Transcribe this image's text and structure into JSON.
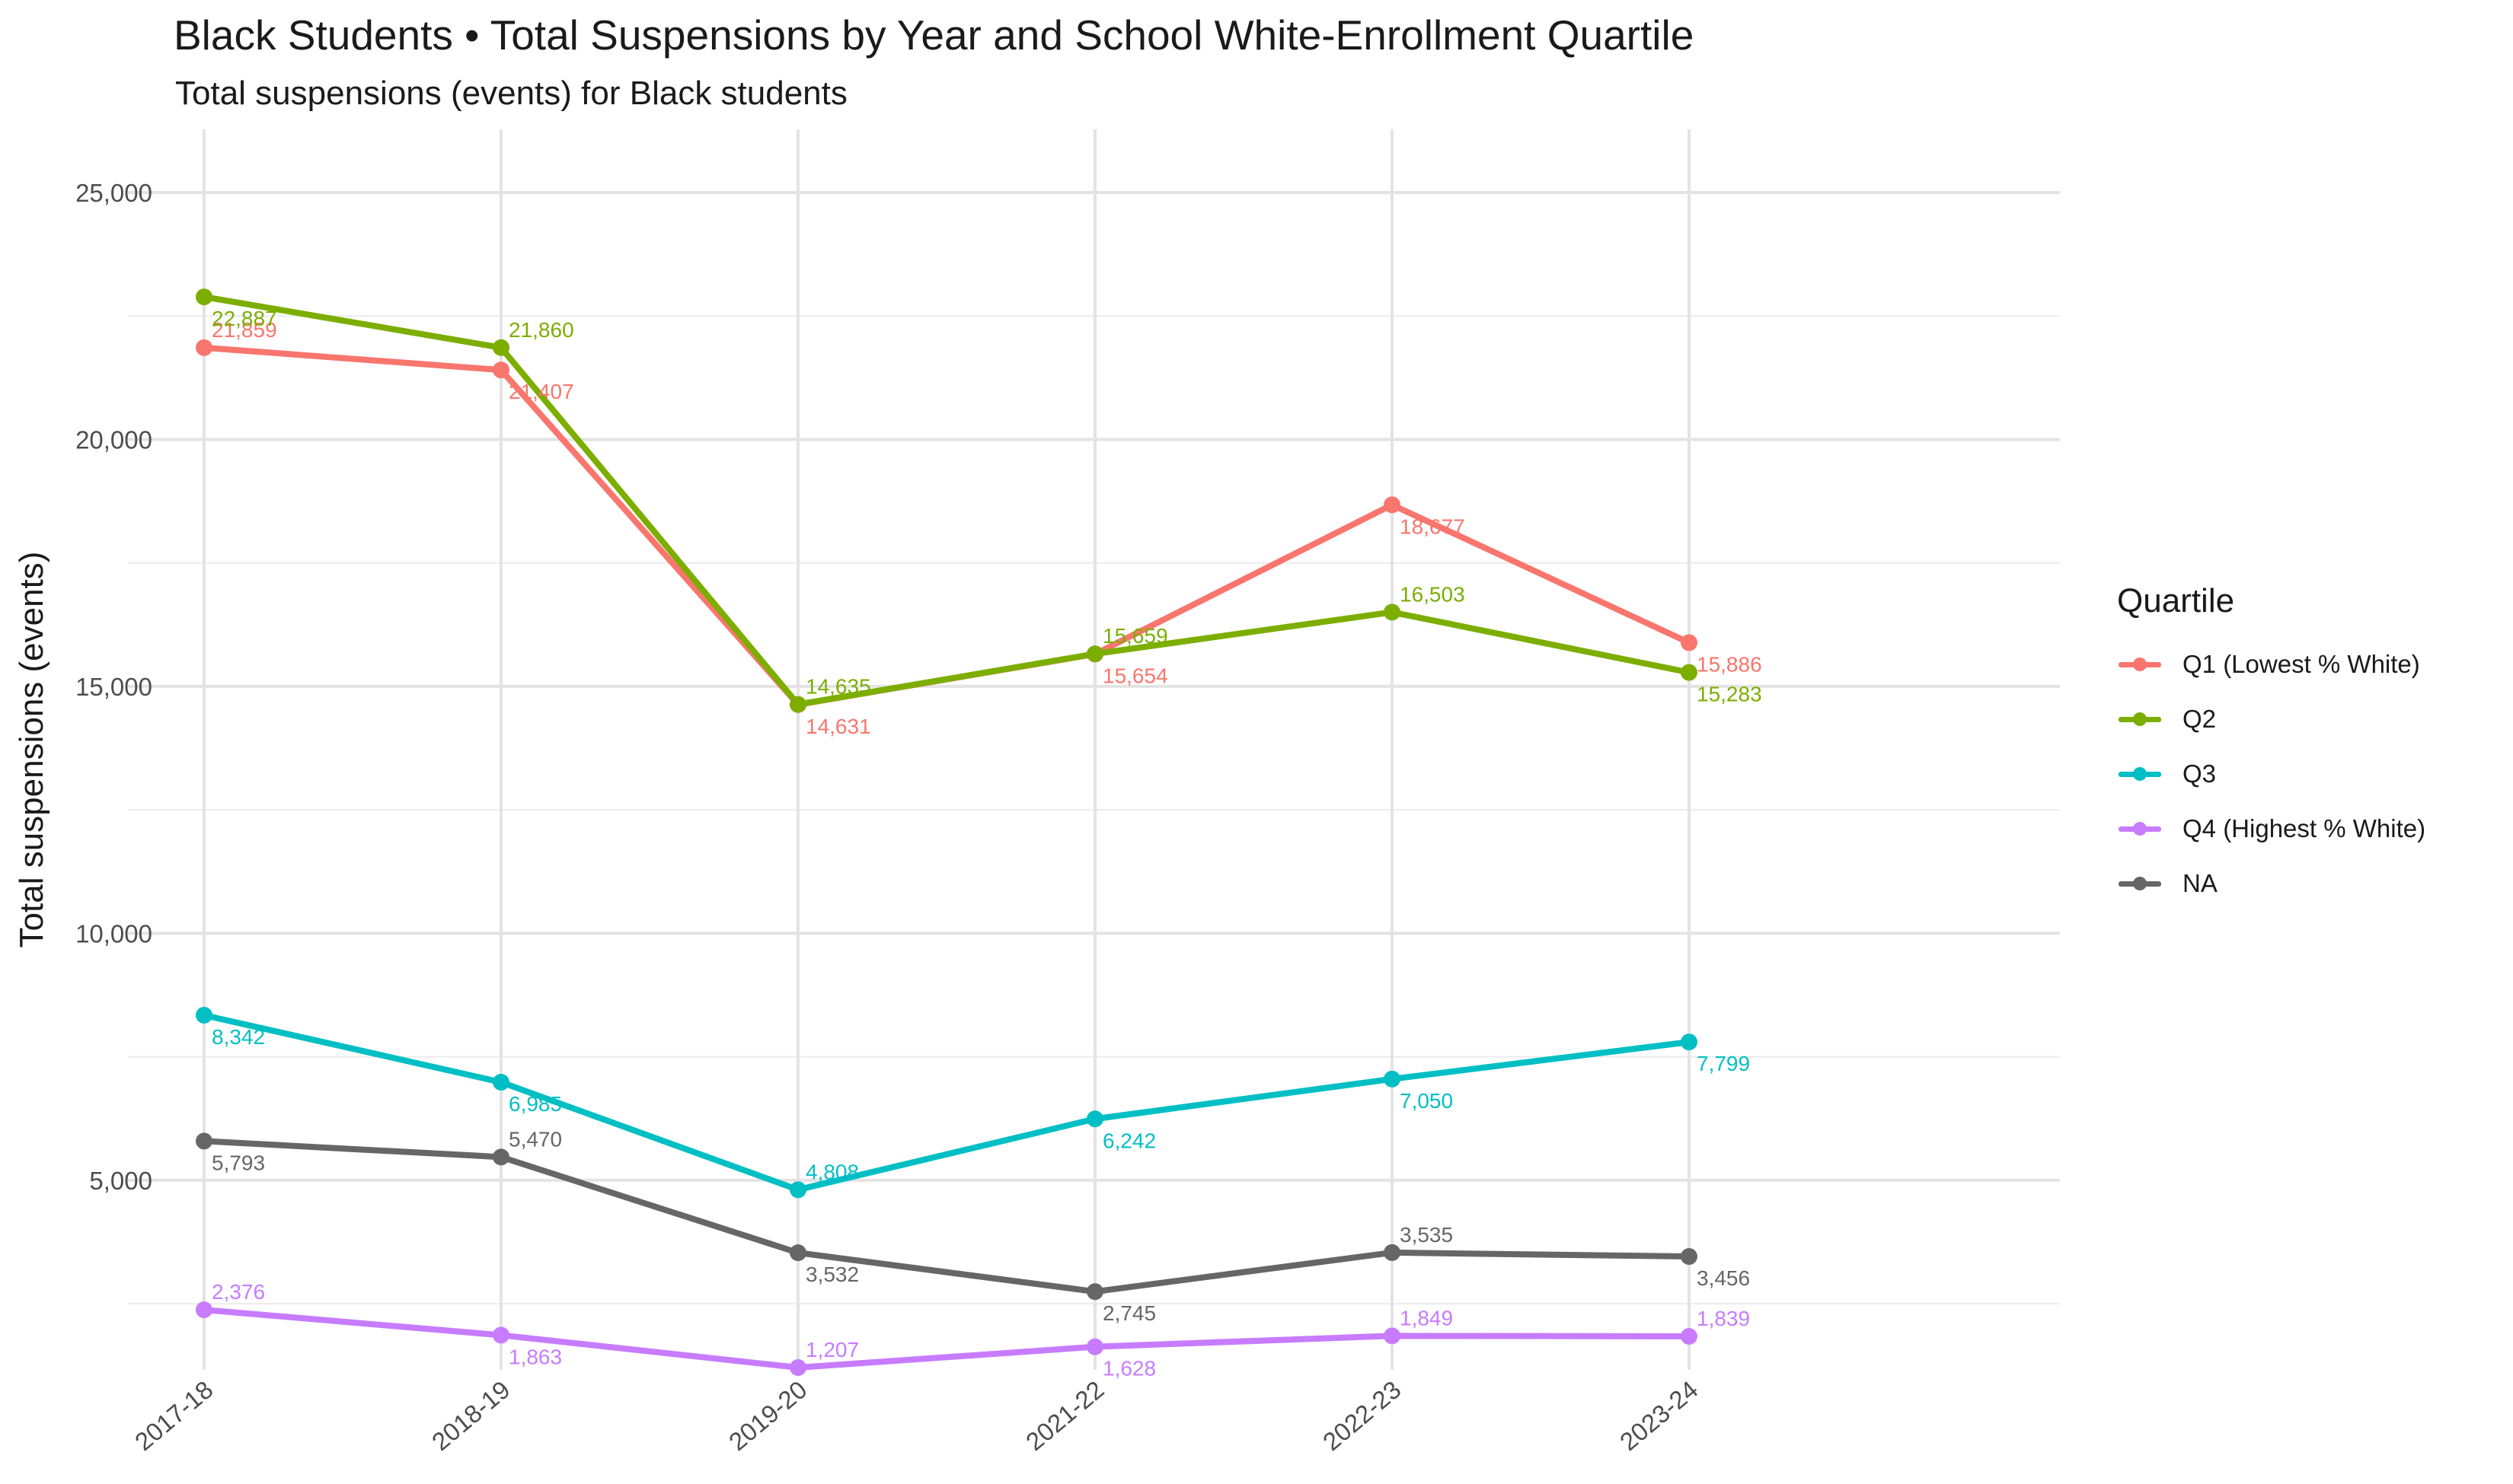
{
  "chart_data": {
    "type": "line",
    "title": "Black Students • Total Suspensions by Year and School White-Enrollment Quartile",
    "subtitle": "Total suspensions (events) for Black students",
    "xlabel": "",
    "ylabel": "Total suspensions (events)",
    "categories": [
      "2017-18",
      "2018-19",
      "2019-20",
      "2021-22",
      "2022-23",
      "2023-24"
    ],
    "y_ticks": [
      5000,
      10000,
      15000,
      20000,
      25000
    ],
    "y_tick_labels": [
      "5,000",
      "10,000",
      "15,000",
      "20,000",
      "25,000"
    ],
    "ylim": [
      1207,
      25000
    ],
    "grid": true,
    "legend_title": "Quartile",
    "legend_position": "right",
    "series": [
      {
        "name": "Q1 (Lowest % White)",
        "color": "#F8766D",
        "values": [
          21859,
          21407,
          14631,
          15654,
          18677,
          15886
        ],
        "labels": [
          "21,859",
          "21,407",
          "14,631",
          "15,654",
          "18,677",
          "15,886"
        ]
      },
      {
        "name": "Q2",
        "color": "#7CAE00",
        "values": [
          22887,
          21860,
          14635,
          15659,
          16503,
          15283
        ],
        "labels": [
          "22,887",
          "21,860",
          "14,635",
          "15,659",
          "16,503",
          "15,283"
        ]
      },
      {
        "name": "Q3",
        "color": "#00BFC4",
        "values": [
          8342,
          6985,
          4808,
          6242,
          7050,
          7799
        ],
        "labels": [
          "8,342",
          "6,985",
          "4,808",
          "6,242",
          "7,050",
          "7,799"
        ]
      },
      {
        "name": "Q4 (Highest % White)",
        "color": "#C77CFF",
        "values": [
          2376,
          1863,
          1207,
          1628,
          1849,
          1839
        ],
        "labels": [
          "2,376",
          "1,863",
          "1,207",
          "1,628",
          "1,849",
          "1,839"
        ]
      },
      {
        "name": "NA",
        "color": "#666666",
        "values": [
          5793,
          5470,
          3532,
          2745,
          3535,
          3456
        ],
        "labels": [
          "5,793",
          "5,470",
          "3,532",
          "2,745",
          "3,535",
          "3,456"
        ]
      }
    ]
  }
}
